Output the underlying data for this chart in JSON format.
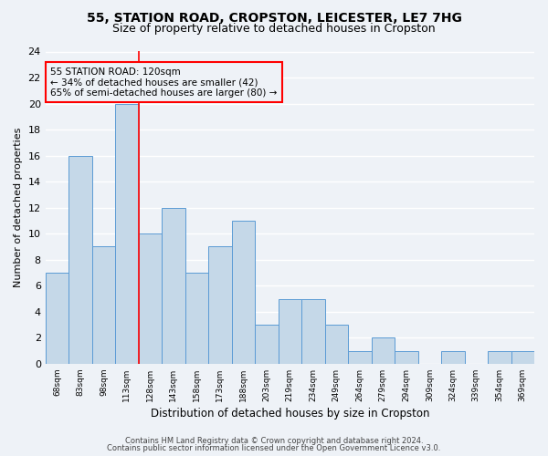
{
  "title_line1": "55, STATION ROAD, CROPSTON, LEICESTER, LE7 7HG",
  "title_line2": "Size of property relative to detached houses in Cropston",
  "xlabel": "Distribution of detached houses by size in Cropston",
  "ylabel": "Number of detached properties",
  "footer_line1": "Contains HM Land Registry data © Crown copyright and database right 2024.",
  "footer_line2": "Contains public sector information licensed under the Open Government Licence v3.0.",
  "categories": [
    "68sqm",
    "83sqm",
    "98sqm",
    "113sqm",
    "128sqm",
    "143sqm",
    "158sqm",
    "173sqm",
    "188sqm",
    "203sqm",
    "219sqm",
    "234sqm",
    "249sqm",
    "264sqm",
    "279sqm",
    "294sqm",
    "309sqm",
    "324sqm",
    "339sqm",
    "354sqm",
    "369sqm"
  ],
  "values": [
    7,
    16,
    9,
    20,
    10,
    12,
    7,
    9,
    11,
    3,
    5,
    5,
    3,
    1,
    2,
    1,
    0,
    1,
    0,
    1,
    1
  ],
  "bar_color": "#c5d8e8",
  "bar_edge_color": "#5b9bd5",
  "ylim": [
    0,
    24
  ],
  "yticks": [
    0,
    2,
    4,
    6,
    8,
    10,
    12,
    14,
    16,
    18,
    20,
    22,
    24
  ],
  "red_line_x": 3.5,
  "annotation_line1": "55 STATION ROAD: 120sqm",
  "annotation_line2": "← 34% of detached houses are smaller (42)",
  "annotation_line3": "65% of semi-detached houses are larger (80) →",
  "bg_color": "#eef2f7",
  "grid_color": "#ffffff",
  "title1_fontsize": 10,
  "title2_fontsize": 9,
  "bar_linewidth": 0.7
}
